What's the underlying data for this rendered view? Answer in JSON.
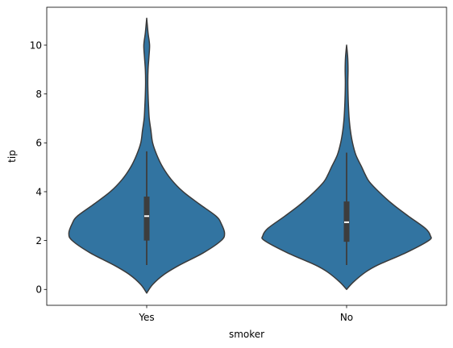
{
  "chart_data": {
    "type": "violin",
    "xlabel": "smoker",
    "ylabel": "tip",
    "categories": [
      "Yes",
      "No"
    ],
    "ylim": [
      -0.65,
      11.55
    ],
    "yticks": [
      0,
      2,
      4,
      6,
      8,
      10
    ],
    "grid": false,
    "legend": "none",
    "color": "#3274a1",
    "edge_color": "#3a3a3a",
    "series": [
      {
        "category": "Yes",
        "summary": {
          "whisker_low": 1.0,
          "q1": 2.0,
          "median": 3.0,
          "q3": 3.8,
          "whisker_high": 5.65
        },
        "density_profile": [
          [
            -0.15,
            0.0
          ],
          [
            0.2,
            0.07
          ],
          [
            0.6,
            0.2
          ],
          [
            1.0,
            0.39
          ],
          [
            1.5,
            0.67
          ],
          [
            2.0,
            0.88
          ],
          [
            2.3,
            0.92
          ],
          [
            2.7,
            0.88
          ],
          [
            3.0,
            0.82
          ],
          [
            3.5,
            0.62
          ],
          [
            4.0,
            0.43
          ],
          [
            4.5,
            0.29
          ],
          [
            5.0,
            0.19
          ],
          [
            5.5,
            0.12
          ],
          [
            6.0,
            0.07
          ],
          [
            6.5,
            0.05
          ],
          [
            7.0,
            0.03
          ],
          [
            7.5,
            0.022
          ],
          [
            8.0,
            0.016
          ],
          [
            8.5,
            0.013
          ],
          [
            9.0,
            0.016
          ],
          [
            9.5,
            0.026
          ],
          [
            10.0,
            0.034
          ],
          [
            10.5,
            0.016
          ],
          [
            11.1,
            0.0
          ]
        ]
      },
      {
        "category": "No",
        "summary": {
          "whisker_low": 1.0,
          "q1": 1.95,
          "median": 2.75,
          "q3": 3.6,
          "whisker_high": 5.6
        },
        "density_profile": [
          [
            0.0,
            0.0
          ],
          [
            0.3,
            0.08
          ],
          [
            0.7,
            0.22
          ],
          [
            1.0,
            0.37
          ],
          [
            1.5,
            0.7
          ],
          [
            2.0,
            0.97
          ],
          [
            2.2,
            0.99
          ],
          [
            2.5,
            0.93
          ],
          [
            3.0,
            0.73
          ],
          [
            3.5,
            0.54
          ],
          [
            4.0,
            0.38
          ],
          [
            4.4,
            0.27
          ],
          [
            4.7,
            0.22
          ],
          [
            5.0,
            0.18
          ],
          [
            5.5,
            0.11
          ],
          [
            6.0,
            0.07
          ],
          [
            6.5,
            0.045
          ],
          [
            7.0,
            0.03
          ],
          [
            7.5,
            0.022
          ],
          [
            8.0,
            0.017
          ],
          [
            8.5,
            0.015
          ],
          [
            9.0,
            0.017
          ],
          [
            9.5,
            0.013
          ],
          [
            10.0,
            0.0
          ]
        ]
      }
    ]
  }
}
